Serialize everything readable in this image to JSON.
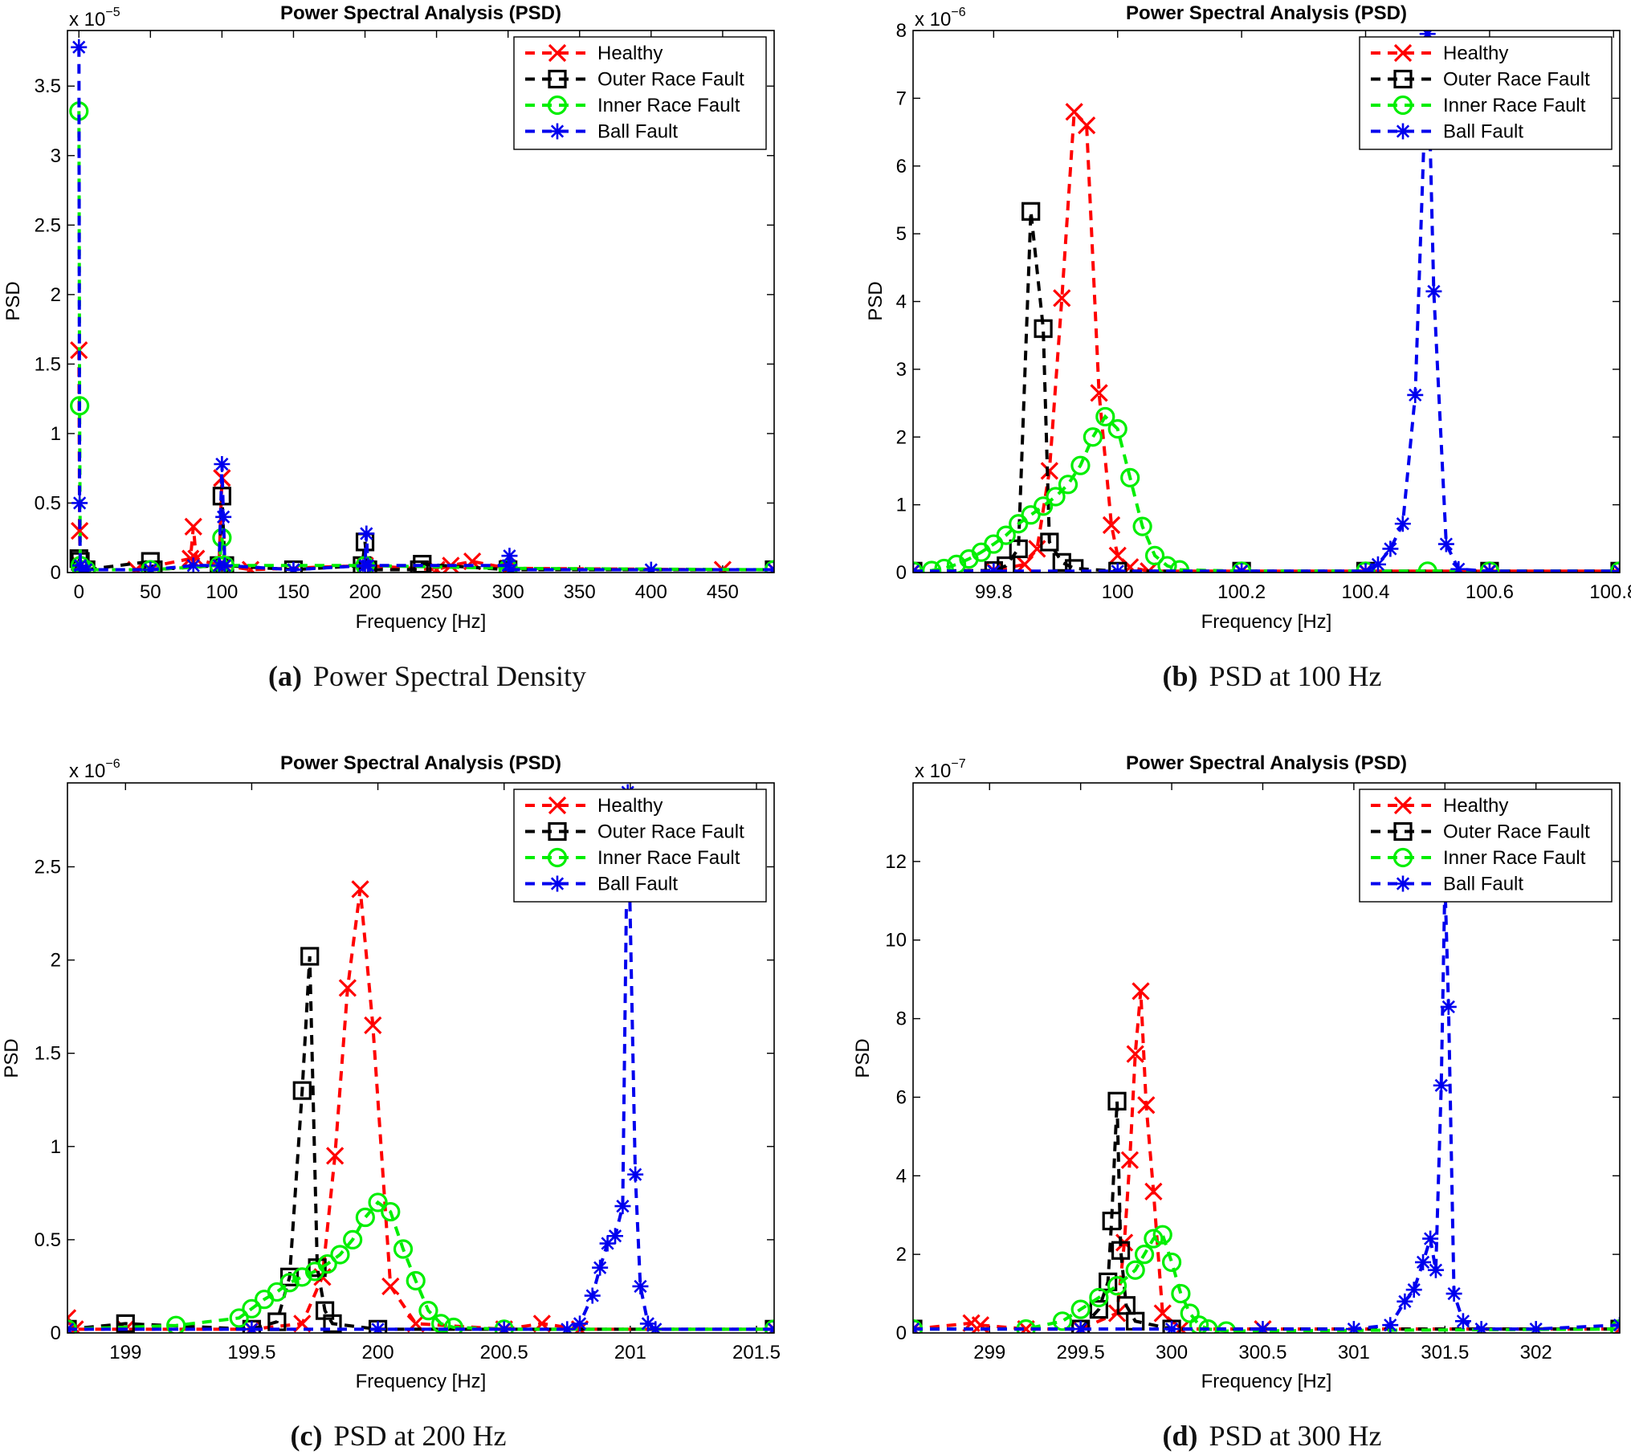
{
  "panels": [
    {
      "caption_label": "(a)",
      "caption_text": "Power Spectral Density",
      "exponent_label": "x 10",
      "exponent_power": "−5",
      "chart_data": {
        "type": "line",
        "title": "Power Spectral Analysis (PSD)",
        "xlabel": "Frequency [Hz]",
        "ylabel": "PSD",
        "xlim": [
          -8,
          486
        ],
        "ylim": [
          0,
          3.9
        ],
        "xticks": [
          0,
          50,
          100,
          150,
          200,
          250,
          300,
          350,
          400,
          450
        ],
        "xtick_labels": [
          "0",
          "50",
          "100",
          "150",
          "200",
          "250",
          "300",
          "350",
          "400",
          "450"
        ],
        "yticks": [
          0,
          0.5,
          1,
          1.5,
          2,
          2.5,
          3,
          3.5
        ],
        "ytick_labels": [
          "0",
          "0.5",
          "1",
          "1.5",
          "2",
          "2.5",
          "3",
          "3.5"
        ],
        "legend_position": "top-right",
        "series": [
          {
            "name": "Healthy",
            "color": "#ff0000",
            "marker": "x",
            "x": [
              0,
              0.5,
              1,
              2,
              5,
              40,
              78,
              80,
              82,
              98,
              100,
              102,
              120,
              200,
              250,
              260,
              275,
              300,
              450,
              486
            ],
            "y": [
              1.6,
              0.3,
              0.05,
              0.02,
              0.02,
              0.02,
              0.1,
              0.33,
              0.1,
              0.05,
              0.68,
              0.05,
              0.02,
              0.05,
              0.02,
              0.05,
              0.08,
              0.03,
              0.02,
              0.02
            ]
          },
          {
            "name": "Outer Race Fault",
            "color": "#000000",
            "marker": "square",
            "x": [
              0,
              1,
              2,
              5,
              50,
              52,
              98,
              100,
              102,
              150,
              198,
              200,
              202,
              238,
              240,
              300,
              486
            ],
            "y": [
              0.1,
              0.08,
              0.02,
              0.02,
              0.08,
              0.02,
              0.05,
              0.55,
              0.05,
              0.02,
              0.05,
              0.22,
              0.02,
              0.02,
              0.06,
              0.02,
              0.02
            ]
          },
          {
            "name": "Inner Race Fault",
            "color": "#00ee00",
            "marker": "circle",
            "x": [
              0,
              0.5,
              1,
              2,
              5,
              50,
              98,
              100,
              102,
              200,
              300,
              486
            ],
            "y": [
              3.32,
              1.2,
              0.05,
              0.02,
              0.02,
              0.02,
              0.05,
              0.25,
              0.05,
              0.05,
              0.03,
              0.02
            ]
          },
          {
            "name": "Ball Fault",
            "color": "#0000ee",
            "marker": "asterisk",
            "x": [
              0,
              0.5,
              1,
              2,
              5,
              50,
              80,
              98,
              100,
              101,
              102,
              150,
              200,
              201,
              202,
              300,
              301,
              302,
              400,
              486
            ],
            "y": [
              3.78,
              0.5,
              0.05,
              0.02,
              0.02,
              0.02,
              0.05,
              0.05,
              0.78,
              0.4,
              0.05,
              0.02,
              0.05,
              0.28,
              0.05,
              0.05,
              0.12,
              0.02,
              0.02,
              0.02
            ]
          }
        ]
      }
    },
    {
      "caption_label": "(b)",
      "caption_text": "PSD at 100 Hz",
      "exponent_label": "x 10",
      "exponent_power": "−6",
      "chart_data": {
        "type": "line",
        "title": "Power Spectral Analysis (PSD)",
        "xlabel": "Frequency [Hz]",
        "ylabel": "PSD",
        "xlim": [
          99.67,
          100.81
        ],
        "ylim": [
          0,
          8
        ],
        "xticks": [
          99.8,
          100,
          100.2,
          100.4,
          100.6,
          100.8
        ],
        "xtick_labels": [
          "99.8",
          "100",
          "100.2",
          "100.4",
          "100.6",
          "100.8"
        ],
        "yticks": [
          0,
          1,
          2,
          3,
          4,
          5,
          6,
          7,
          8
        ],
        "ytick_labels": [
          "0",
          "1",
          "2",
          "3",
          "4",
          "5",
          "6",
          "7",
          "8"
        ],
        "legend_position": "top-right",
        "series": [
          {
            "name": "Healthy",
            "color": "#ff0000",
            "marker": "x",
            "x": [
              99.67,
              99.8,
              99.85,
              99.87,
              99.89,
              99.91,
              99.93,
              99.95,
              99.97,
              99.99,
              100.0,
              100.02,
              100.05,
              100.2,
              100.4,
              100.6,
              100.81
            ],
            "y": [
              0.02,
              0.03,
              0.12,
              0.35,
              1.5,
              4.05,
              6.8,
              6.6,
              2.65,
              0.7,
              0.25,
              0.08,
              0.02,
              0.02,
              0.02,
              0.02,
              0.02
            ]
          },
          {
            "name": "Outer Race Fault",
            "color": "#000000",
            "marker": "square",
            "x": [
              99.67,
              99.8,
              99.82,
              99.84,
              99.86,
              99.88,
              99.89,
              99.91,
              99.93,
              100.0,
              100.2,
              100.4,
              100.6,
              100.81
            ],
            "y": [
              0.02,
              0.03,
              0.1,
              0.35,
              5.33,
              3.6,
              0.45,
              0.15,
              0.06,
              0.02,
              0.02,
              0.02,
              0.02,
              0.02
            ]
          },
          {
            "name": "Inner Race Fault",
            "color": "#00ee00",
            "marker": "circle",
            "x": [
              99.67,
              99.7,
              99.72,
              99.74,
              99.76,
              99.78,
              99.8,
              99.82,
              99.84,
              99.86,
              99.88,
              99.9,
              99.92,
              99.94,
              99.96,
              99.98,
              100.0,
              100.02,
              100.04,
              100.06,
              100.08,
              100.1,
              100.2,
              100.4,
              100.5,
              100.6,
              100.81
            ],
            "y": [
              0.02,
              0.03,
              0.06,
              0.12,
              0.2,
              0.3,
              0.42,
              0.55,
              0.72,
              0.85,
              0.98,
              1.12,
              1.3,
              1.58,
              2.0,
              2.3,
              2.12,
              1.4,
              0.68,
              0.25,
              0.1,
              0.04,
              0.02,
              0.02,
              0.02,
              0.02,
              0.02
            ]
          },
          {
            "name": "Ball Fault",
            "color": "#0000ee",
            "marker": "asterisk",
            "x": [
              99.67,
              99.8,
              100.0,
              100.2,
              100.4,
              100.42,
              100.44,
              100.46,
              100.48,
              100.5,
              100.51,
              100.53,
              100.55,
              100.6,
              100.81
            ],
            "y": [
              0.02,
              0.02,
              0.02,
              0.02,
              0.02,
              0.12,
              0.35,
              0.72,
              2.62,
              7.95,
              4.15,
              0.42,
              0.05,
              0.02,
              0.02
            ]
          }
        ]
      }
    },
    {
      "caption_label": "(c)",
      "caption_text": "PSD at 200 Hz",
      "exponent_label": "x 10",
      "exponent_power": "−6",
      "chart_data": {
        "type": "line",
        "title": "Power Spectral Analysis (PSD)",
        "xlabel": "Frequency [Hz]",
        "ylabel": "PSD",
        "xlim": [
          198.77,
          201.57
        ],
        "ylim": [
          0,
          2.95
        ],
        "xticks": [
          199,
          199.5,
          200,
          200.5,
          201,
          201.5
        ],
        "xtick_labels": [
          "199",
          "199.5",
          "200",
          "200.5",
          "201",
          "201.5"
        ],
        "yticks": [
          0,
          0.5,
          1,
          1.5,
          2,
          2.5
        ],
        "ytick_labels": [
          "0",
          "0.5",
          "1",
          "1.5",
          "2",
          "2.5"
        ],
        "legend_position": "top-right",
        "series": [
          {
            "name": "Healthy",
            "color": "#ff0000",
            "marker": "x",
            "x": [
              198.77,
              198.8,
              199.0,
              199.5,
              199.7,
              199.78,
              199.83,
              199.88,
              199.93,
              199.98,
              200.05,
              200.15,
              200.5,
              200.65,
              200.8,
              201.57
            ],
            "y": [
              0.08,
              0.02,
              0.02,
              0.02,
              0.05,
              0.3,
              0.95,
              1.85,
              2.38,
              1.65,
              0.25,
              0.05,
              0.02,
              0.05,
              0.02,
              0.02
            ]
          },
          {
            "name": "Outer Race Fault",
            "color": "#000000",
            "marker": "square",
            "x": [
              198.77,
              199.0,
              199.5,
              199.6,
              199.65,
              199.7,
              199.73,
              199.76,
              199.79,
              199.82,
              200.0,
              201.57
            ],
            "y": [
              0.02,
              0.05,
              0.02,
              0.06,
              0.3,
              1.3,
              2.02,
              0.35,
              0.12,
              0.05,
              0.02,
              0.02
            ]
          },
          {
            "name": "Inner Race Fault",
            "color": "#00ee00",
            "marker": "circle",
            "x": [
              198.77,
              199.2,
              199.45,
              199.5,
              199.55,
              199.6,
              199.65,
              199.7,
              199.75,
              199.8,
              199.85,
              199.9,
              199.95,
              200.0,
              200.05,
              200.1,
              200.15,
              200.2,
              200.25,
              200.3,
              200.5,
              201.57
            ],
            "y": [
              0.02,
              0.04,
              0.08,
              0.13,
              0.18,
              0.22,
              0.27,
              0.3,
              0.33,
              0.37,
              0.42,
              0.5,
              0.62,
              0.7,
              0.65,
              0.45,
              0.28,
              0.12,
              0.05,
              0.03,
              0.02,
              0.02
            ]
          },
          {
            "name": "Ball Fault",
            "color": "#0000ee",
            "marker": "asterisk",
            "x": [
              198.77,
              199.5,
              200.0,
              200.5,
              200.75,
              200.8,
              200.85,
              200.88,
              200.91,
              200.94,
              200.97,
              200.99,
              201.02,
              201.04,
              201.07,
              201.1,
              201.57
            ],
            "y": [
              0.02,
              0.02,
              0.02,
              0.02,
              0.02,
              0.05,
              0.2,
              0.35,
              0.48,
              0.52,
              0.68,
              2.9,
              0.85,
              0.25,
              0.05,
              0.02,
              0.02
            ]
          }
        ]
      }
    },
    {
      "caption_label": "(d)",
      "caption_text": "PSD at 300 Hz",
      "exponent_label": "x 10",
      "exponent_power": "−7",
      "chart_data": {
        "type": "line",
        "title": "Power Spectral Analysis (PSD)",
        "xlabel": "Frequency [Hz]",
        "ylabel": "PSD",
        "xlim": [
          298.58,
          302.46
        ],
        "ylim": [
          0,
          14
        ],
        "xticks": [
          299,
          299.5,
          300,
          300.5,
          301,
          301.5,
          302
        ],
        "xtick_labels": [
          "299",
          "299.5",
          "300",
          "300.5",
          "301",
          "301.5",
          "302"
        ],
        "yticks": [
          0,
          2,
          4,
          6,
          8,
          10,
          12
        ],
        "ytick_labels": [
          "0",
          "2",
          "4",
          "6",
          "8",
          "10",
          "12"
        ],
        "legend_position": "top-right",
        "series": [
          {
            "name": "Healthy",
            "color": "#ff0000",
            "marker": "x",
            "x": [
              298.58,
              298.9,
              298.95,
              299.2,
              299.5,
              299.7,
              299.74,
              299.77,
              299.8,
              299.83,
              299.86,
              299.9,
              299.95,
              300.05,
              300.5,
              302.46
            ],
            "y": [
              0.1,
              0.25,
              0.2,
              0.1,
              0.1,
              0.5,
              2.3,
              4.4,
              7.1,
              8.7,
              5.8,
              3.6,
              0.5,
              0.1,
              0.1,
              0.1
            ]
          },
          {
            "name": "Outer Race Fault",
            "color": "#000000",
            "marker": "square",
            "x": [
              298.58,
              299.5,
              299.6,
              299.65,
              299.67,
              299.7,
              299.72,
              299.75,
              299.8,
              300.0,
              302.46
            ],
            "y": [
              0.1,
              0.1,
              0.6,
              1.3,
              2.85,
              5.9,
              2.1,
              0.7,
              0.3,
              0.1,
              0.1
            ]
          },
          {
            "name": "Inner Race Fault",
            "color": "#00ee00",
            "marker": "circle",
            "x": [
              298.58,
              299.2,
              299.4,
              299.5,
              299.6,
              299.7,
              299.8,
              299.85,
              299.9,
              299.95,
              300.0,
              300.05,
              300.1,
              300.15,
              300.2,
              300.3,
              302.46
            ],
            "y": [
              0.1,
              0.1,
              0.3,
              0.6,
              0.9,
              1.2,
              1.6,
              2.0,
              2.4,
              2.5,
              1.8,
              1.0,
              0.5,
              0.2,
              0.1,
              0.05,
              0.1
            ]
          },
          {
            "name": "Ball Fault",
            "color": "#0000ee",
            "marker": "asterisk",
            "x": [
              298.58,
              299.5,
              300.0,
              300.5,
              301.0,
              301.2,
              301.28,
              301.33,
              301.38,
              301.42,
              301.45,
              301.48,
              301.5,
              301.52,
              301.55,
              301.6,
              301.7,
              302.0,
              302.46
            ],
            "y": [
              0.1,
              0.1,
              0.1,
              0.1,
              0.1,
              0.2,
              0.8,
              1.1,
              1.8,
              2.4,
              1.6,
              6.3,
              11.5,
              8.3,
              1.0,
              0.3,
              0.1,
              0.1,
              0.2
            ]
          }
        ]
      }
    }
  ]
}
